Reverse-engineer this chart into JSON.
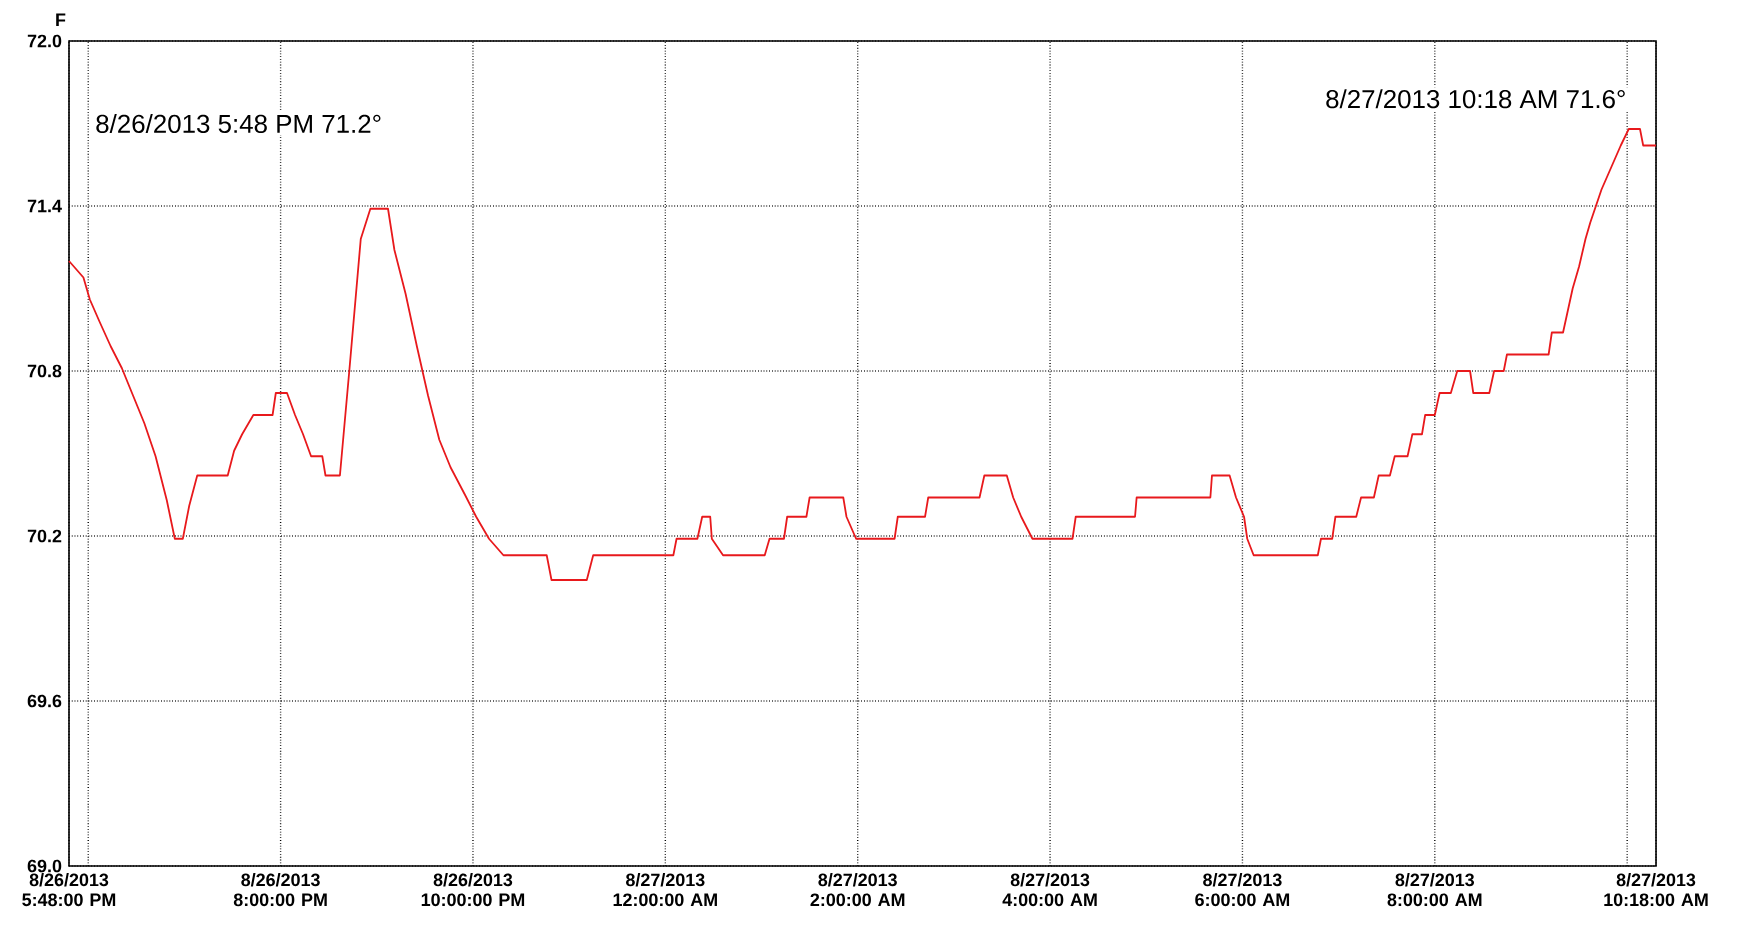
{
  "chart_data": {
    "type": "line",
    "ylabel": "F",
    "annotations": [
      "8/26/2013 5:48 PM 71.2°",
      "8/27/2013 10:18 AM 71.6°"
    ],
    "xlim": [
      "2013-08-26T17:48",
      "2013-08-27T10:18"
    ],
    "ylim": [
      69.0,
      72.0
    ],
    "xticks": [
      {
        "value": "2013-08-26T17:48",
        "label": "8/26/2013 5:48:00 PM"
      },
      {
        "value": "2013-08-26T18:00",
        "label": null
      },
      {
        "value": "2013-08-26T20:00",
        "label": "8/26/2013 8:00:00 PM"
      },
      {
        "value": "2013-08-26T22:00",
        "label": "8/26/2013 10:00:00 PM"
      },
      {
        "value": "2013-08-27T00:00",
        "label": "8/27/2013 12:00:00 AM"
      },
      {
        "value": "2013-08-27T02:00",
        "label": "8/27/2013 2:00:00 AM"
      },
      {
        "value": "2013-08-27T04:00",
        "label": "8/27/2013 4:00:00 AM"
      },
      {
        "value": "2013-08-27T06:00",
        "label": "8/27/2013 6:00:00 AM"
      },
      {
        "value": "2013-08-27T08:00",
        "label": "8/27/2013 8:00:00 AM"
      },
      {
        "value": "2013-08-27T10:00",
        "label": null
      },
      {
        "value": "2013-08-27T10:18",
        "label": "8/27/2013 10:18:00 AM"
      }
    ],
    "yticks": [
      {
        "value": 69.0,
        "label": "69.0"
      },
      {
        "value": 69.6,
        "label": "69.6"
      },
      {
        "value": 70.2,
        "label": "70.2"
      },
      {
        "value": 70.8,
        "label": "70.8"
      },
      {
        "value": 71.4,
        "label": "71.4"
      },
      {
        "value": 72.0,
        "label": "72.0"
      }
    ],
    "grid": true,
    "marker": "none",
    "line_style": "solid",
    "series": [
      {
        "color": "#e8191c",
        "x": [
          "2013-08-26T17:48",
          "2013-08-26T17:57",
          "2013-08-26T18:01",
          "2013-08-26T18:07",
          "2013-08-26T18:14",
          "2013-08-26T18:21",
          "2013-08-26T18:28",
          "2013-08-26T18:35",
          "2013-08-26T18:42",
          "2013-08-26T18:49",
          "2013-08-26T18:54",
          "2013-08-26T18:59",
          "2013-08-26T19:03",
          "2013-08-26T19:08",
          "2013-08-26T19:27",
          "2013-08-26T19:31",
          "2013-08-26T19:36",
          "2013-08-26T19:43",
          "2013-08-26T19:55",
          "2013-08-26T19:57",
          "2013-08-26T20:04",
          "2013-08-26T20:09",
          "2013-08-26T20:14",
          "2013-08-26T20:19",
          "2013-08-26T20:26",
          "2013-08-26T20:28",
          "2013-08-26T20:37",
          "2013-08-26T20:43",
          "2013-08-26T20:50",
          "2013-08-26T20:56",
          "2013-08-26T21:07",
          "2013-08-26T21:11",
          "2013-08-26T21:18",
          "2013-08-26T21:25",
          "2013-08-26T21:32",
          "2013-08-26T21:39",
          "2013-08-26T21:46",
          "2013-08-26T21:55",
          "2013-08-26T22:02",
          "2013-08-26T22:10",
          "2013-08-26T22:19",
          "2013-08-26T22:46",
          "2013-08-26T22:49",
          "2013-08-26T23:11",
          "2013-08-26T23:15",
          "2013-08-27T00:05",
          "2013-08-27T00:07",
          "2013-08-27T00:20",
          "2013-08-27T00:23",
          "2013-08-27T00:28",
          "2013-08-27T00:29",
          "2013-08-27T00:36",
          "2013-08-27T01:02",
          "2013-08-27T01:05",
          "2013-08-27T01:14",
          "2013-08-27T01:16",
          "2013-08-27T01:28",
          "2013-08-27T01:30",
          "2013-08-27T01:51",
          "2013-08-27T01:53",
          "2013-08-27T01:59",
          "2013-08-27T02:23",
          "2013-08-27T02:25",
          "2013-08-27T02:42",
          "2013-08-27T02:44",
          "2013-08-27T03:16",
          "2013-08-27T03:19",
          "2013-08-27T03:33",
          "2013-08-27T03:37",
          "2013-08-27T03:42",
          "2013-08-27T03:49",
          "2013-08-27T04:14",
          "2013-08-27T04:16",
          "2013-08-27T04:53",
          "2013-08-27T04:54",
          "2013-08-27T05:40",
          "2013-08-27T05:41",
          "2013-08-27T05:52",
          "2013-08-27T05:56",
          "2013-08-27T06:01",
          "2013-08-27T06:03",
          "2013-08-27T06:07",
          "2013-08-27T06:47",
          "2013-08-27T06:49",
          "2013-08-27T06:56",
          "2013-08-27T06:58",
          "2013-08-27T07:11",
          "2013-08-27T07:14",
          "2013-08-27T07:22",
          "2013-08-27T07:25",
          "2013-08-27T07:32",
          "2013-08-27T07:35",
          "2013-08-27T07:43",
          "2013-08-27T07:46",
          "2013-08-27T07:52",
          "2013-08-27T07:54",
          "2013-08-27T08:00",
          "2013-08-27T08:03",
          "2013-08-27T08:10",
          "2013-08-27T08:14",
          "2013-08-27T08:22",
          "2013-08-27T08:24",
          "2013-08-27T08:34",
          "2013-08-27T08:37",
          "2013-08-27T08:43",
          "2013-08-27T08:45",
          "2013-08-27T09:11",
          "2013-08-27T09:13",
          "2013-08-27T09:20",
          "2013-08-27T09:23",
          "2013-08-27T09:26",
          "2013-08-27T09:30",
          "2013-08-27T09:34",
          "2013-08-27T09:37",
          "2013-08-27T09:44",
          "2013-08-27T09:50",
          "2013-08-27T09:56",
          "2013-08-27T10:01",
          "2013-08-27T10:08",
          "2013-08-27T10:10",
          "2013-08-27T10:18"
        ],
        "values": [
          71.2,
          71.14,
          71.06,
          70.98,
          70.89,
          70.81,
          70.71,
          70.61,
          70.49,
          70.33,
          70.19,
          70.19,
          70.31,
          70.42,
          70.42,
          70.51,
          70.57,
          70.64,
          70.64,
          70.72,
          70.72,
          70.64,
          70.57,
          70.49,
          70.49,
          70.42,
          70.42,
          70.81,
          71.28,
          71.39,
          71.39,
          71.24,
          71.08,
          70.89,
          70.71,
          70.55,
          70.45,
          70.35,
          70.27,
          70.19,
          70.13,
          70.13,
          70.04,
          70.04,
          70.13,
          70.13,
          70.19,
          70.19,
          70.27,
          70.27,
          70.19,
          70.13,
          70.13,
          70.19,
          70.19,
          70.27,
          70.27,
          70.34,
          70.34,
          70.27,
          70.19,
          70.19,
          70.27,
          70.27,
          70.34,
          70.34,
          70.42,
          70.42,
          70.34,
          70.27,
          70.19,
          70.19,
          70.27,
          70.27,
          70.34,
          70.34,
          70.42,
          70.42,
          70.34,
          70.27,
          70.19,
          70.13,
          70.13,
          70.19,
          70.19,
          70.27,
          70.27,
          70.34,
          70.34,
          70.42,
          70.42,
          70.49,
          70.49,
          70.57,
          70.57,
          70.64,
          70.64,
          70.72,
          70.72,
          70.8,
          70.8,
          70.72,
          70.72,
          70.8,
          70.8,
          70.86,
          70.86,
          70.94,
          70.94,
          71.02,
          71.1,
          71.18,
          71.28,
          71.34,
          71.46,
          71.54,
          71.62,
          71.68,
          71.68,
          71.62,
          71.62
        ]
      }
    ]
  }
}
